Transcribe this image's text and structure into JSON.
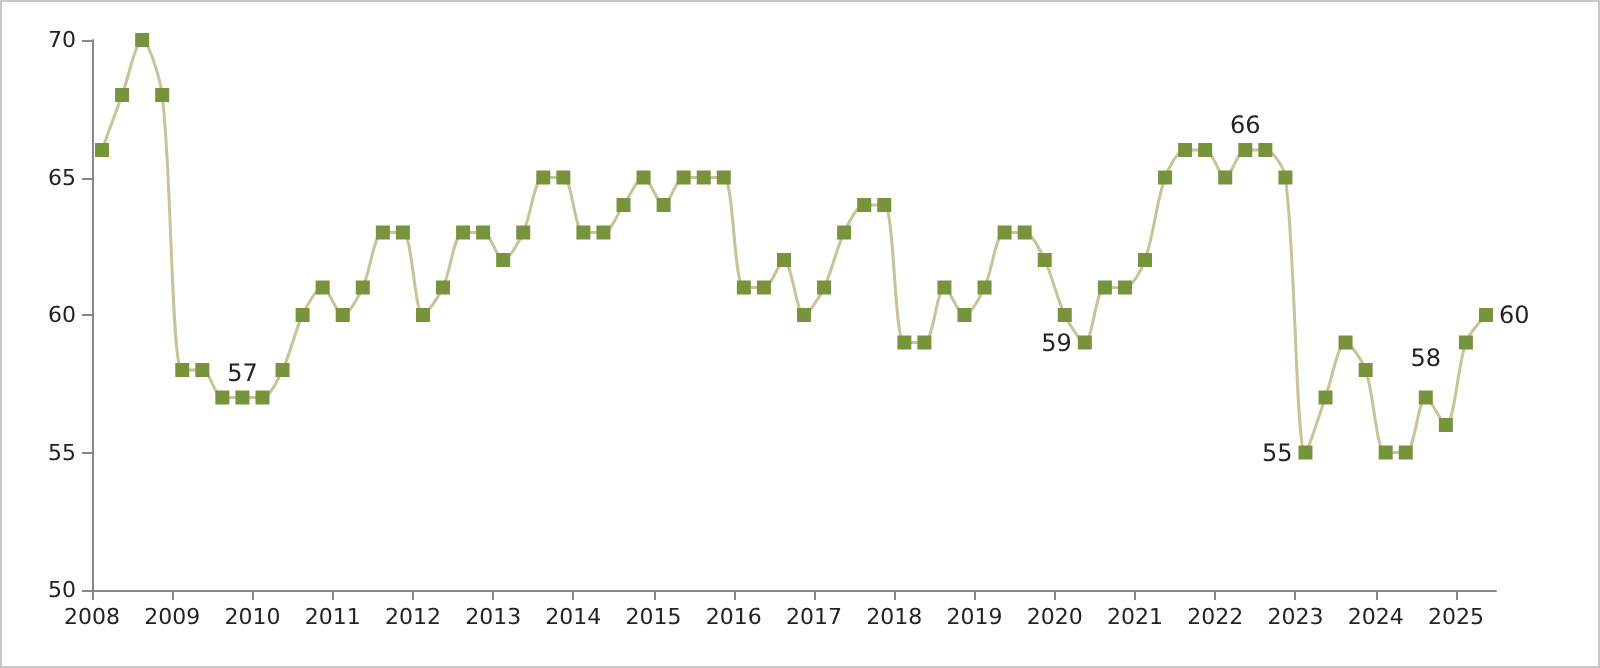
{
  "chart_data": {
    "type": "line",
    "x": [
      2008.125,
      2008.375,
      2008.625,
      2008.875,
      2009.125,
      2009.375,
      2009.625,
      2009.875,
      2010.125,
      2010.375,
      2010.625,
      2010.875,
      2011.125,
      2011.375,
      2011.625,
      2011.875,
      2012.125,
      2012.375,
      2012.625,
      2012.875,
      2013.125,
      2013.375,
      2013.625,
      2013.875,
      2014.125,
      2014.375,
      2014.625,
      2014.875,
      2015.125,
      2015.375,
      2015.625,
      2015.875,
      2016.125,
      2016.375,
      2016.625,
      2016.875,
      2017.125,
      2017.375,
      2017.625,
      2017.875,
      2018.125,
      2018.375,
      2018.625,
      2018.875,
      2019.125,
      2019.375,
      2019.625,
      2019.875,
      2020.125,
      2020.375,
      2020.625,
      2020.875,
      2021.125,
      2021.375,
      2021.625,
      2021.875,
      2022.125,
      2022.375,
      2022.625,
      2022.875,
      2023.125,
      2023.375,
      2023.625,
      2023.875,
      2024.125,
      2024.375,
      2024.625,
      2024.875,
      2025.125,
      2025.375
    ],
    "series": [
      {
        "color": "#c8c398",
        "marker": "none",
        "values": [
          66,
          68,
          70,
          68,
          58,
          58,
          57,
          57,
          57,
          58,
          60,
          61,
          60,
          61,
          63,
          63,
          60,
          61,
          63,
          63,
          62,
          63,
          65,
          65,
          63,
          63,
          64,
          65,
          64,
          65,
          65,
          65,
          61,
          61,
          62,
          60,
          61,
          63,
          64,
          64,
          59,
          59,
          61,
          60,
          61,
          63,
          63,
          62,
          60,
          59,
          61,
          61,
          62,
          65,
          66,
          66,
          65,
          66,
          66,
          65,
          55,
          57,
          59,
          58,
          55,
          55,
          57,
          56,
          59,
          60
        ]
      },
      {
        "type": "scatter",
        "color": "#77933c",
        "marker": "square",
        "values": [
          66,
          68,
          70,
          68,
          58,
          58,
          57,
          57,
          57,
          58,
          60,
          61,
          60,
          61,
          63,
          63,
          60,
          61,
          63,
          63,
          62,
          63,
          65,
          65,
          63,
          63,
          64,
          65,
          64,
          65,
          65,
          65,
          61,
          61,
          62,
          60,
          61,
          63,
          64,
          64,
          59,
          59,
          61,
          60,
          61,
          63,
          63,
          62,
          60,
          59,
          61,
          61,
          62,
          65,
          66,
          66,
          65,
          66,
          66,
          65,
          55,
          57,
          59,
          58,
          55,
          55,
          57,
          56,
          59,
          60
        ],
        "value_labels": [
          null,
          null,
          null,
          null,
          null,
          null,
          null,
          "57",
          null,
          null,
          null,
          null,
          null,
          null,
          null,
          null,
          null,
          null,
          null,
          null,
          null,
          null,
          null,
          null,
          null,
          null,
          null,
          null,
          null,
          null,
          null,
          null,
          null,
          null,
          null,
          null,
          null,
          null,
          null,
          null,
          null,
          null,
          null,
          null,
          null,
          null,
          null,
          null,
          null,
          "59",
          null,
          null,
          null,
          null,
          null,
          null,
          null,
          "66",
          null,
          null,
          "55",
          null,
          null,
          null,
          null,
          null,
          null,
          null,
          null,
          "60"
        ]
      }
    ],
    "annotations": [
      {
        "text": "58",
        "x": 2024.625,
        "y": 57
      }
    ],
    "xlim": [
      2008,
      2025.5
    ],
    "xticks": [
      2008,
      2009,
      2010,
      2011,
      2012,
      2013,
      2014,
      2015,
      2016,
      2017,
      2018,
      2019,
      2020,
      2021,
      2022,
      2023,
      2024,
      2025
    ],
    "ylim": [
      50,
      70
    ],
    "yticks": [
      50,
      55,
      60,
      65,
      70
    ],
    "grid": false,
    "line_style": "solid"
  }
}
